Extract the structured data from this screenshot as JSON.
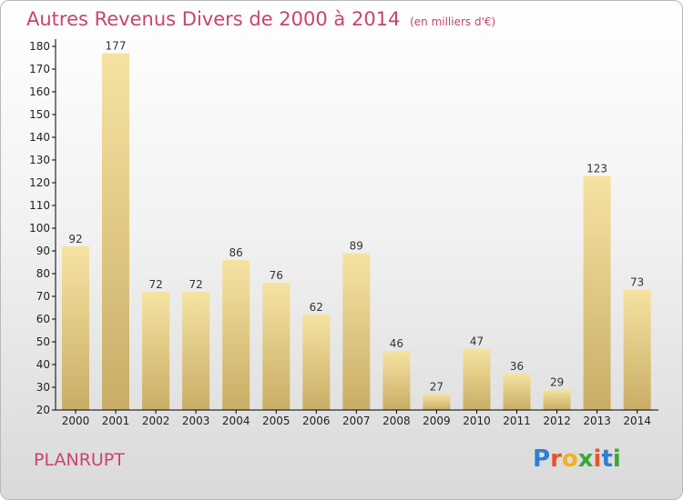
{
  "header": {
    "title": "Autres Revenus Divers de 2000 à 2014",
    "unit": "(en milliers d'€)"
  },
  "footer": {
    "town": "PLANRUPT",
    "logo_letters": [
      "P",
      "r",
      "o",
      "x",
      "i",
      "t",
      "i"
    ],
    "logo_colors": [
      "#2f7fd0",
      "#e8542a",
      "#f2b11d",
      "#39a935",
      "#e8542a",
      "#2f7fd0",
      "#39a935"
    ]
  },
  "chart_data": {
    "type": "bar",
    "categories": [
      "2000",
      "2001",
      "2002",
      "2003",
      "2004",
      "2005",
      "2006",
      "2007",
      "2008",
      "2009",
      "2010",
      "2011",
      "2012",
      "2013",
      "2014"
    ],
    "values": [
      92,
      177,
      72,
      72,
      86,
      76,
      62,
      89,
      46,
      27,
      47,
      36,
      29,
      123,
      73
    ],
    "ylim": [
      20,
      180
    ],
    "yticks": [
      20,
      30,
      40,
      50,
      60,
      70,
      80,
      90,
      100,
      110,
      120,
      130,
      140,
      150,
      160,
      170,
      180
    ],
    "grid": false,
    "colors": {
      "bar_light": "#f6e3a1",
      "bar_dark": "#c9ad66",
      "axis": "#000000"
    }
  }
}
